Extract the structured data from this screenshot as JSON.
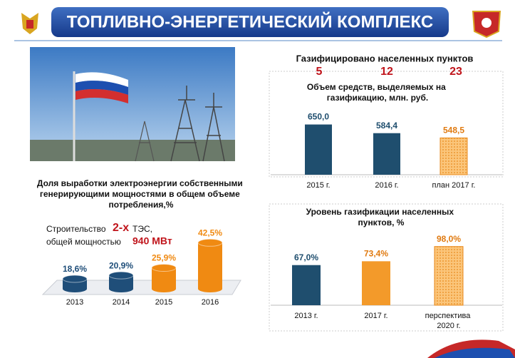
{
  "header": {
    "title": "ТОПЛИВНО-ЭНЕРГЕТИЧЕСКИЙ КОМПЛЕКС"
  },
  "gasified": {
    "title": "Газифицировано населенных пунктов",
    "values": [
      5,
      12,
      23
    ]
  },
  "chart_data": [
    {
      "type": "bar",
      "bar_shape": "cylinder",
      "title": "Доля выработки электроэнергии собственными генерирующими мощностями в общем объеме потребления,%",
      "annotation": [
        "Строительство",
        "2-х",
        "ТЭС,",
        "общей мощностью",
        "940 МВт"
      ],
      "categories": [
        "2013",
        "2014",
        "2015",
        "2016"
      ],
      "values": [
        18.6,
        20.9,
        25.9,
        42.5
      ],
      "value_labels": [
        "18,6%",
        "20,9%",
        "25,9%",
        "42,5%"
      ],
      "colors": [
        "#1f4e79",
        "#1f4e79",
        "#f08a12",
        "#f08a12"
      ],
      "label_colors": [
        "#1f4e79",
        "#1f4e79",
        "#f08a12",
        "#f08a12"
      ],
      "ylim": [
        12,
        45
      ]
    },
    {
      "type": "bar",
      "bar_shape": "box",
      "title": "Объем средств, выделяемых на газификацию, млн. руб.",
      "categories": [
        "2015 г.",
        "2016 г.",
        "план 2017 г."
      ],
      "values": [
        650.0,
        584.4,
        548.5
      ],
      "value_labels": [
        "650,0",
        "584,4",
        "548,5"
      ],
      "colors": [
        "#1f4e6e",
        "#1f4e6e",
        "#f7a540"
      ],
      "hatched": [
        false,
        false,
        true
      ],
      "label_colors": [
        "#1f4e6e",
        "#1f4e6e",
        "#e07a10"
      ],
      "ylim": [
        270,
        680
      ]
    },
    {
      "type": "bar",
      "bar_shape": "box",
      "title": "Уровень газификации населенных пунктов, %",
      "categories": [
        "2013 г.",
        "2017 г.",
        "перспектива 2020 г."
      ],
      "values": [
        67.0,
        73.4,
        98.0
      ],
      "value_labels": [
        "67,0%",
        "73,4%",
        "98,0%"
      ],
      "colors": [
        "#1f4e6e",
        "#f39a2a",
        "#f7a540"
      ],
      "hatched": [
        false,
        false,
        true
      ],
      "label_colors": [
        "#1f4e6e",
        "#e07a10",
        "#e07a10"
      ],
      "ylim": [
        0,
        100
      ]
    }
  ]
}
